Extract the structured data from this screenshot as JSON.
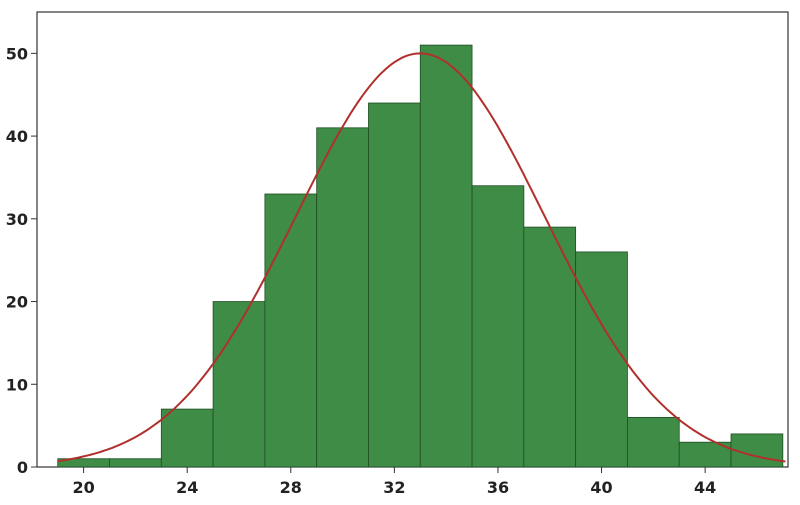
{
  "chart_data": {
    "type": "bar",
    "subtype": "histogram",
    "title": "",
    "xlabel": "",
    "ylabel": "",
    "bin_edges": [
      19,
      21,
      23,
      25,
      27,
      29,
      31,
      33,
      35,
      37,
      39,
      41,
      43,
      45,
      47
    ],
    "values": [
      1,
      1,
      7,
      20,
      33,
      41,
      44,
      51,
      34,
      29,
      26,
      6,
      3,
      4
    ],
    "xlim": [
      18.2,
      47.2
    ],
    "ylim": [
      0,
      55
    ],
    "x_ticks": [
      "20",
      "24",
      "28",
      "32",
      "36",
      "40",
      "44"
    ],
    "y_ticks": [
      "0",
      "10",
      "20",
      "30",
      "40",
      "50"
    ],
    "fit_curve": {
      "type": "normal",
      "mean": 33,
      "sd": 4.8,
      "peak": 50
    },
    "grid": false,
    "legend": "none",
    "colors": {
      "bar_fill": "#3f8c46",
      "bar_edge": "#1f4d24",
      "curve": "#b0302c",
      "frame": "#333333"
    }
  }
}
